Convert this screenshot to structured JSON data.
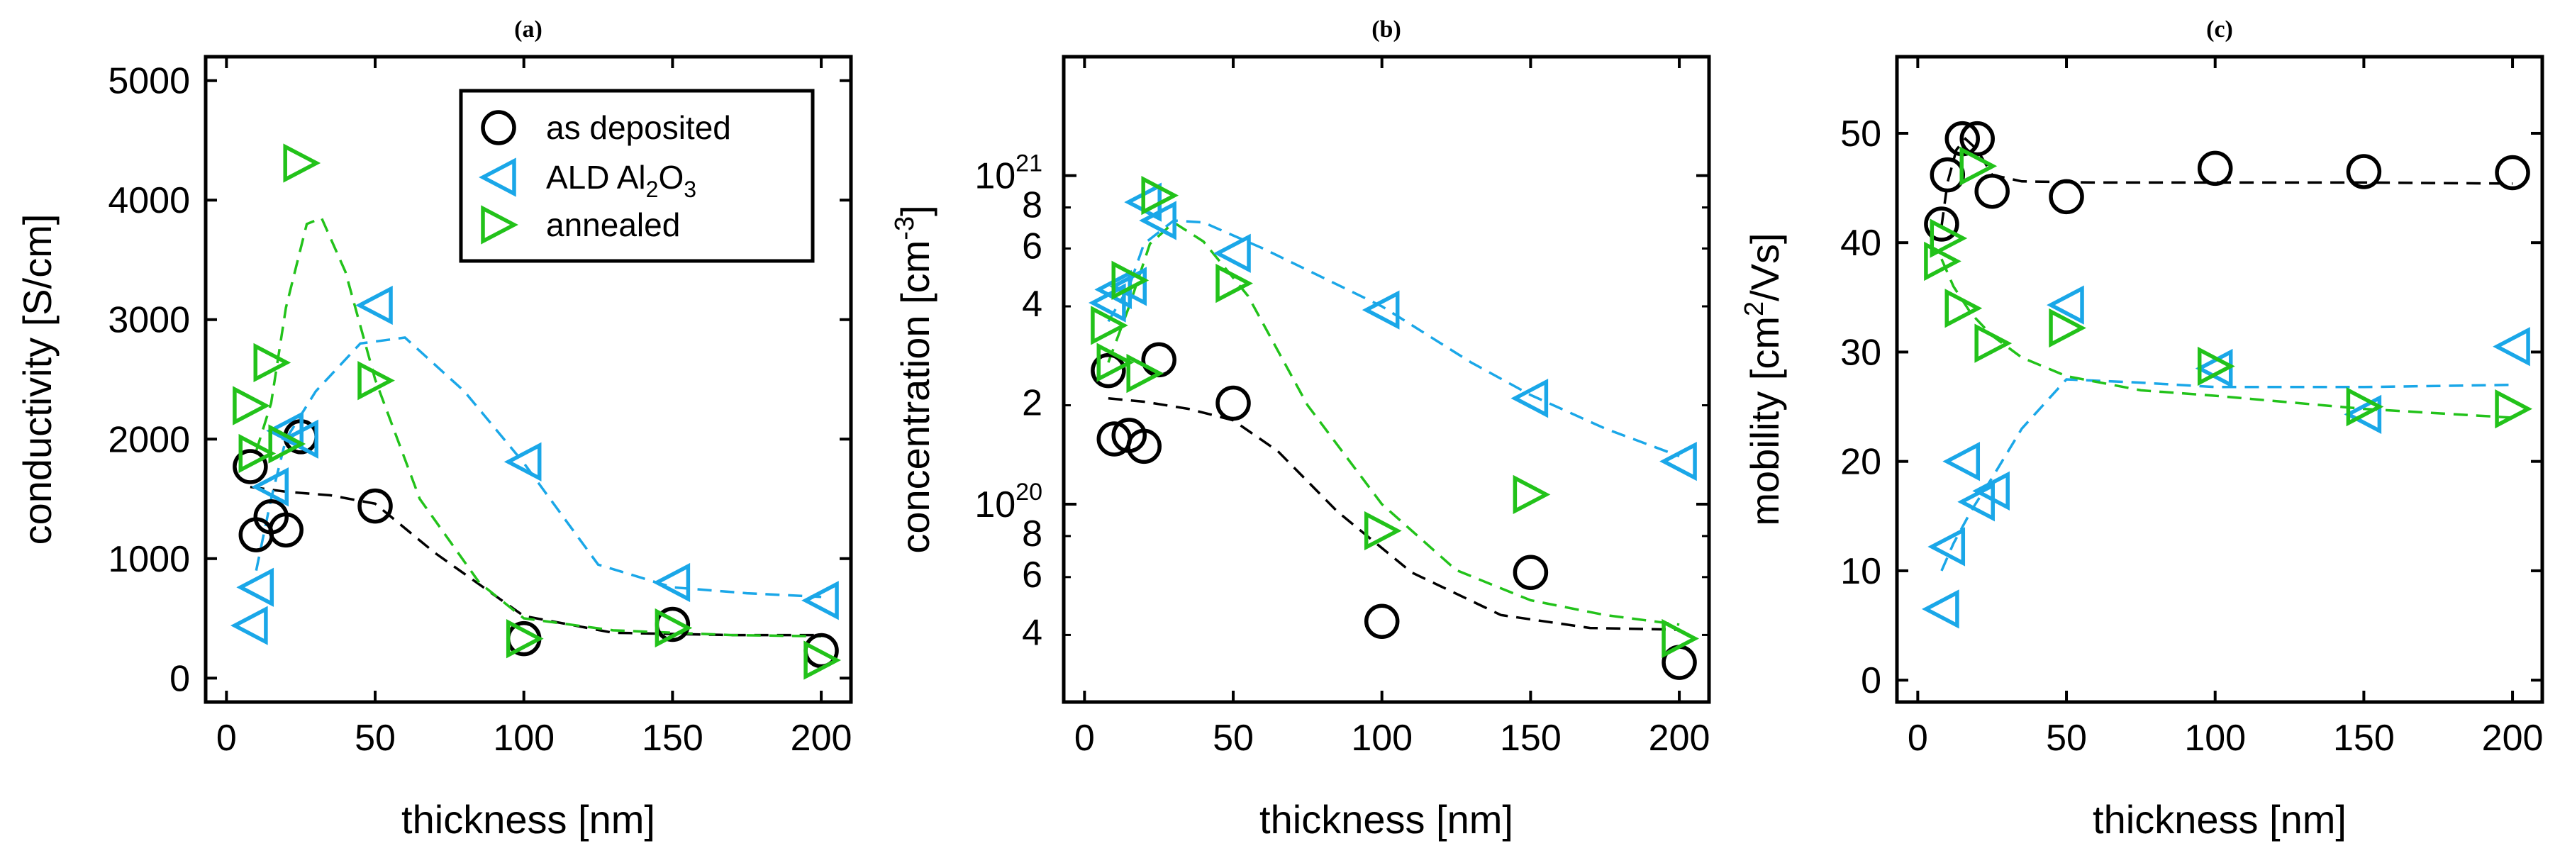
{
  "colors": {
    "as_deposited": "#000000",
    "ald": "#1aa7e8",
    "annealed": "#22c21a"
  },
  "legend": {
    "items": [
      {
        "key": "as_deposited",
        "marker": "circle",
        "label": "as deposited"
      },
      {
        "key": "ald",
        "marker": "triangle-left",
        "label": "ALD Al2O3",
        "label_main": "ALD Al",
        "sub1": "2",
        "mid": "O",
        "sub2": "3"
      },
      {
        "key": "annealed",
        "marker": "triangle-right",
        "label": "annealed"
      }
    ]
  },
  "chart_data": [
    {
      "id": "a",
      "title": "(a)",
      "type": "scatter",
      "yscale": "linear",
      "xlabel": "thickness [nm]",
      "ylabel": "conductivity [S/cm]",
      "xlim": [
        -7,
        210
      ],
      "ylim": [
        -200,
        5200
      ],
      "xticks": [
        0,
        50,
        100,
        150,
        200
      ],
      "yticks": [
        0,
        1000,
        2000,
        3000,
        4000,
        5000
      ],
      "legend_position": "top-right",
      "series": [
        {
          "key": "as_deposited",
          "name": "as deposited",
          "marker": "circle",
          "points": [
            [
              8,
              1770
            ],
            [
              10,
              1200
            ],
            [
              15,
              1350
            ],
            [
              20,
              1240
            ],
            [
              25,
              2020
            ],
            [
              50,
              1440
            ],
            [
              100,
              330
            ],
            [
              150,
              450
            ],
            [
              200,
              230
            ]
          ],
          "fit": [
            [
              8,
              1600
            ],
            [
              20,
              1560
            ],
            [
              35,
              1530
            ],
            [
              50,
              1460
            ],
            [
              70,
              1050
            ],
            [
              100,
              520
            ],
            [
              130,
              380
            ],
            [
              170,
              360
            ],
            [
              200,
              360
            ]
          ]
        },
        {
          "key": "ald",
          "name": "ALD Al2O3",
          "marker": "triangle-left",
          "points": [
            [
              8,
              440
            ],
            [
              10,
              760
            ],
            [
              15,
              1600
            ],
            [
              20,
              2070
            ],
            [
              25,
              2000
            ],
            [
              50,
              3120
            ],
            [
              100,
              1810
            ],
            [
              150,
              800
            ],
            [
              200,
              650
            ]
          ],
          "fit": [
            [
              10,
              900
            ],
            [
              15,
              1500
            ],
            [
              20,
              2000
            ],
            [
              30,
              2400
            ],
            [
              45,
              2800
            ],
            [
              60,
              2850
            ],
            [
              80,
              2400
            ],
            [
              100,
              1800
            ],
            [
              125,
              950
            ],
            [
              150,
              760
            ],
            [
              175,
              710
            ],
            [
              200,
              680
            ]
          ]
        },
        {
          "key": "annealed",
          "name": "annealed",
          "marker": "triangle-right",
          "points": [
            [
              8,
              2280
            ],
            [
              10,
              1880
            ],
            [
              15,
              2640
            ],
            [
              20,
              1960
            ],
            [
              25,
              4310
            ],
            [
              50,
              2490
            ],
            [
              100,
              330
            ],
            [
              150,
              420
            ],
            [
              200,
              150
            ]
          ],
          "fit": [
            [
              10,
              1900
            ],
            [
              15,
              2300
            ],
            [
              20,
              3100
            ],
            [
              27,
              3800
            ],
            [
              32,
              3850
            ],
            [
              40,
              3400
            ],
            [
              50,
              2500
            ],
            [
              65,
              1500
            ],
            [
              85,
              800
            ],
            [
              100,
              500
            ],
            [
              130,
              400
            ],
            [
              170,
              360
            ],
            [
              200,
              350
            ]
          ]
        }
      ]
    },
    {
      "id": "b",
      "title": "(b)",
      "type": "scatter",
      "yscale": "log",
      "xlabel": "thickness [nm]",
      "ylabel": "concentration [cm",
      "ylabel_sup": "-3",
      "ylabel_end": "]",
      "xlim": [
        -7,
        210
      ],
      "ylim": [
        2.5e+19,
        2.3e+21
      ],
      "xticks": [
        0,
        50,
        100,
        150,
        200
      ],
      "ymajor": [
        {
          "v": 1e+20,
          "base": "10",
          "exp": "20"
        },
        {
          "v": 1e+21,
          "base": "10",
          "exp": "21"
        }
      ],
      "yminor": [
        {
          "v": 4e+19,
          "lbl": "4"
        },
        {
          "v": 6e+19,
          "lbl": "6"
        },
        {
          "v": 8e+19,
          "lbl": "8"
        },
        {
          "v": 2e+20,
          "lbl": "2"
        },
        {
          "v": 4e+20,
          "lbl": "4"
        },
        {
          "v": 6e+20,
          "lbl": "6"
        },
        {
          "v": 8e+20,
          "lbl": "8"
        }
      ],
      "series": [
        {
          "key": "as_deposited",
          "name": "as deposited",
          "marker": "circle",
          "points": [
            [
              8,
              2.55e+20
            ],
            [
              10,
              1.58e+20
            ],
            [
              15,
              1.62e+20
            ],
            [
              20,
              1.5e+20
            ],
            [
              25,
              2.75e+20
            ],
            [
              50,
              2.03e+20
            ],
            [
              100,
              4.4e+19
            ],
            [
              150,
              6.2e+19
            ],
            [
              200,
              3.3e+19
            ]
          ],
          "fit": [
            [
              8,
              2.1e+20
            ],
            [
              20,
              2.05e+20
            ],
            [
              35,
              1.95e+20
            ],
            [
              50,
              1.8e+20
            ],
            [
              65,
              1.45e+20
            ],
            [
              85,
              9.5e+19
            ],
            [
              110,
              6.2e+19
            ],
            [
              140,
              4.6e+19
            ],
            [
              170,
              4.2e+19
            ],
            [
              200,
              4.15e+19
            ]
          ]
        },
        {
          "key": "ald",
          "name": "ALD Al2O3",
          "marker": "triangle-left",
          "points": [
            [
              8,
              4.1e+20
            ],
            [
              10,
              4.5e+20
            ],
            [
              15,
              4.6e+20
            ],
            [
              20,
              8.3e+20
            ],
            [
              25,
              7.3e+20
            ],
            [
              50,
              5.8e+20
            ],
            [
              100,
              3.9e+20
            ],
            [
              150,
              2.1e+20
            ],
            [
              200,
              1.35e+20
            ]
          ],
          "fit": [
            [
              8,
              3.6e+20
            ],
            [
              15,
              4.6e+20
            ],
            [
              20,
              6.2e+20
            ],
            [
              30,
              7.3e+20
            ],
            [
              40,
              7.2e+20
            ],
            [
              60,
              6e+20
            ],
            [
              80,
              4.9e+20
            ],
            [
              100,
              4e+20
            ],
            [
              130,
              2.7e+20
            ],
            [
              150,
              2.15e+20
            ],
            [
              175,
              1.7e+20
            ],
            [
              200,
              1.4e+20
            ]
          ]
        },
        {
          "key": "annealed",
          "name": "annealed",
          "marker": "triangle-right",
          "points": [
            [
              8,
              3.5e+20
            ],
            [
              10,
              2.7e+20
            ],
            [
              15,
              4.8e+20
            ],
            [
              20,
              2.5e+20
            ],
            [
              25,
              8.7e+20
            ],
            [
              50,
              4.7e+20
            ],
            [
              100,
              8.3e+19
            ],
            [
              150,
              1.07e+20
            ],
            [
              200,
              3.9e+19
            ]
          ],
          "fit": [
            [
              8,
              2.7e+20
            ],
            [
              15,
              4e+20
            ],
            [
              22,
              6.2e+20
            ],
            [
              30,
              7.2e+20
            ],
            [
              40,
              6.3e+20
            ],
            [
              55,
              4.3e+20
            ],
            [
              75,
              2e+20
            ],
            [
              100,
              1e+20
            ],
            [
              125,
              6.3e+19
            ],
            [
              150,
              5.1e+19
            ],
            [
              175,
              4.6e+19
            ],
            [
              200,
              4.3e+19
            ]
          ]
        }
      ]
    },
    {
      "id": "c",
      "title": "(c)",
      "type": "scatter",
      "yscale": "linear",
      "xlabel": "thickness [nm]",
      "ylabel": "mobility [cm",
      "ylabel_sup": "2",
      "ylabel_end": "/Vs]",
      "xlim": [
        -7,
        210
      ],
      "ylim": [
        -2,
        57
      ],
      "xticks": [
        0,
        50,
        100,
        150,
        200
      ],
      "yticks": [
        0,
        10,
        20,
        30,
        40,
        50
      ],
      "series": [
        {
          "key": "as_deposited",
          "name": "as deposited",
          "marker": "circle",
          "points": [
            [
              8,
              41.7
            ],
            [
              10,
              46.2
            ],
            [
              15,
              49.5
            ],
            [
              20,
              49.5
            ],
            [
              25,
              44.7
            ],
            [
              50,
              44.2
            ],
            [
              100,
              46.8
            ],
            [
              150,
              46.5
            ],
            [
              200,
              46.4
            ]
          ],
          "fit": [
            [
              8,
              41.5
            ],
            [
              10,
              45.5
            ],
            [
              13,
              48.5
            ],
            [
              16,
              49.5
            ],
            [
              20,
              48.5
            ],
            [
              25,
              46.2
            ],
            [
              35,
              45.6
            ],
            [
              60,
              45.5
            ],
            [
              100,
              45.5
            ],
            [
              150,
              45.5
            ],
            [
              200,
              45.4
            ]
          ]
        },
        {
          "key": "ald",
          "name": "ALD Al2O3",
          "marker": "triangle-left",
          "points": [
            [
              8,
              6.5
            ],
            [
              10,
              12.2
            ],
            [
              15,
              20
            ],
            [
              20,
              16.3
            ],
            [
              25,
              17.3
            ],
            [
              50,
              34.3
            ],
            [
              100,
              28.5
            ],
            [
              150,
              24.3
            ],
            [
              200,
              30.5
            ]
          ],
          "fit": [
            [
              8,
              10
            ],
            [
              12,
              12.5
            ],
            [
              18,
              15.5
            ],
            [
              25,
              18.5
            ],
            [
              35,
              23
            ],
            [
              50,
              27.5
            ],
            [
              75,
              27.2
            ],
            [
              100,
              26.8
            ],
            [
              150,
              26.8
            ],
            [
              200,
              27
            ]
          ]
        },
        {
          "key": "annealed",
          "name": "annealed",
          "marker": "triangle-right",
          "points": [
            [
              8,
              38.3
            ],
            [
              10,
              40.4
            ],
            [
              15,
              34
            ],
            [
              20,
              47
            ],
            [
              25,
              30.8
            ],
            [
              50,
              32.2
            ],
            [
              100,
              28.7
            ],
            [
              150,
              25
            ],
            [
              200,
              24.8
            ]
          ],
          "fit": [
            [
              8,
              38.5
            ],
            [
              12,
              36
            ],
            [
              18,
              33.5
            ],
            [
              25,
              31.5
            ],
            [
              35,
              29.5
            ],
            [
              50,
              27.8
            ],
            [
              75,
              26.5
            ],
            [
              100,
              26
            ],
            [
              150,
              24.8
            ],
            [
              200,
              24
            ]
          ]
        }
      ]
    }
  ]
}
